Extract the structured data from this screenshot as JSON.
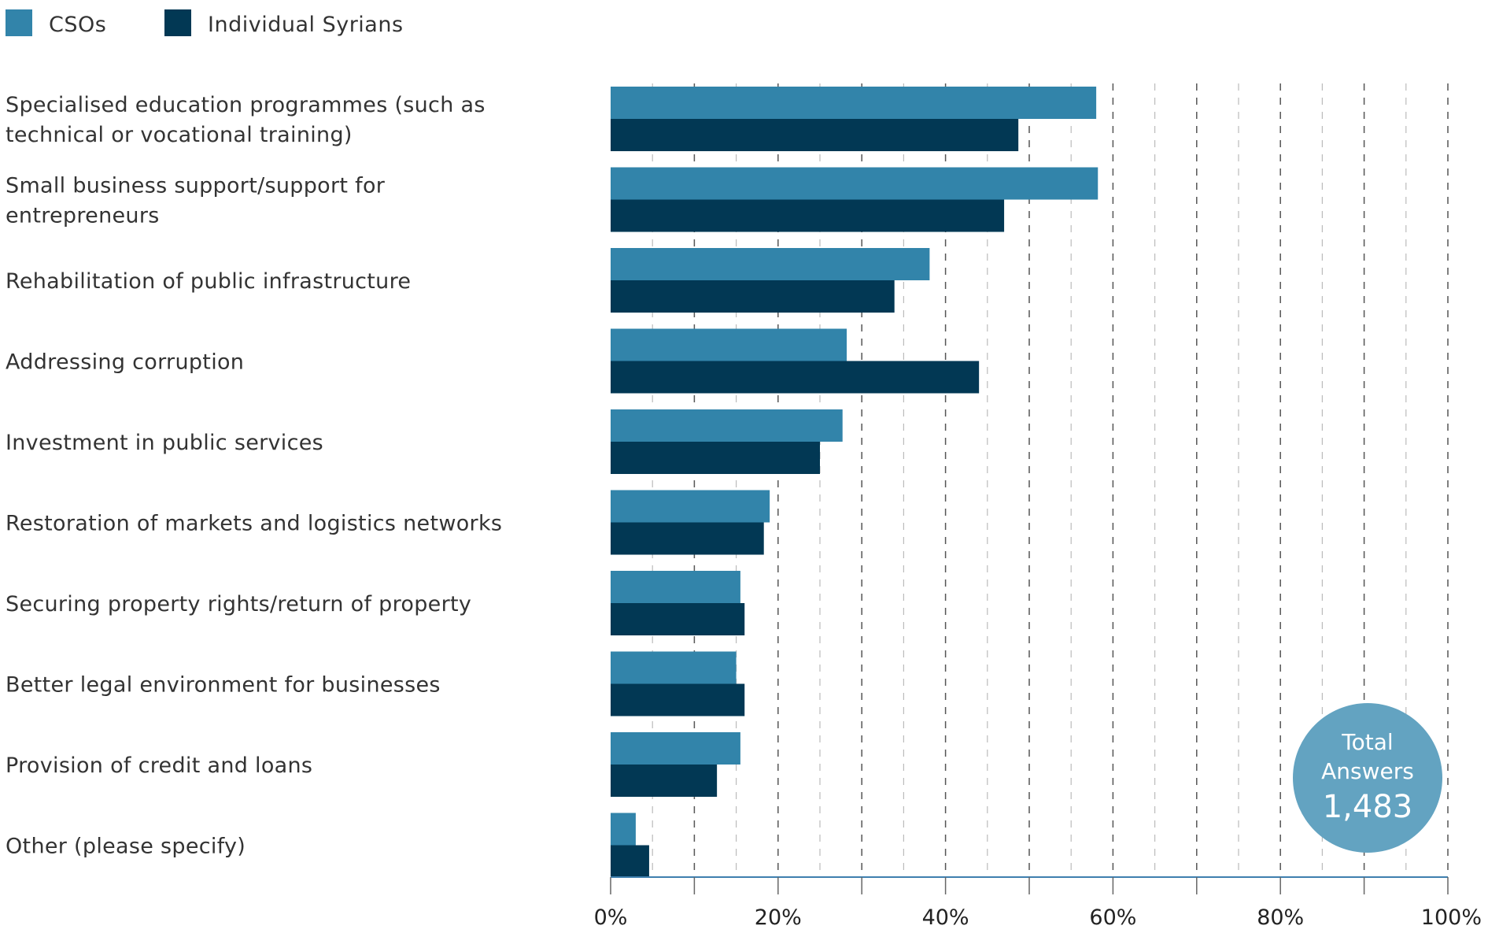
{
  "chart_data": {
    "type": "bar",
    "orientation": "horizontal",
    "categories": [
      [
        "Specialised education programmes (such as",
        "technical or vocational training)"
      ],
      [
        "Small business support/support for",
        "entrepreneurs"
      ],
      [
        "Rehabilitation of public infrastructure"
      ],
      [
        "Addressing corruption"
      ],
      [
        "Investment in public services"
      ],
      [
        "Restoration of markets and logistics networks"
      ],
      [
        "Securing property rights/return of property"
      ],
      [
        "Better legal environment for businesses"
      ],
      [
        "Provision of credit and loans"
      ],
      [
        "Other (please specify)"
      ]
    ],
    "series": [
      {
        "name": "CSOs",
        "color": "#3284aa",
        "values": [
          58.0,
          58.2,
          38.1,
          28.2,
          27.7,
          19.0,
          15.5,
          15.0,
          15.5,
          3.0
        ]
      },
      {
        "name": "Individual Syrians",
        "color": "#023854",
        "values": [
          48.7,
          47.0,
          33.9,
          44.0,
          25.0,
          18.3,
          16.0,
          16.0,
          12.7,
          4.6
        ]
      }
    ],
    "xlim": [
      0,
      100
    ],
    "x_ticks": [
      "0%",
      "20%",
      "40%",
      "60%",
      "80%",
      "100%"
    ],
    "grid": true,
    "legend": "top-left"
  },
  "badge": {
    "title_lines": [
      "Total",
      "Answers"
    ],
    "value": "1,483",
    "color": "#63a3c1"
  }
}
